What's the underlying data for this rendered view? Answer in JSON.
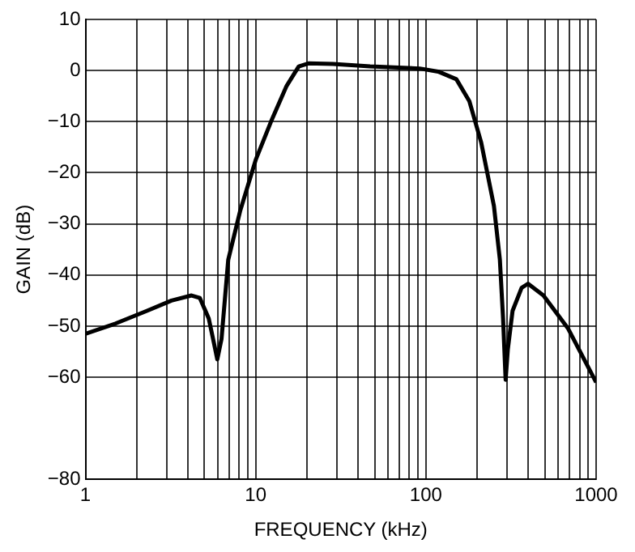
{
  "chart_data": {
    "type": "line",
    "xlabel": "FREQUENCY (kHz)",
    "ylabel": "GAIN (dB)",
    "log": "x",
    "grid": true,
    "legend": false,
    "marker": "none",
    "line_style": "solid",
    "xlim": [
      1,
      1000
    ],
    "ylim": [
      -80,
      10
    ],
    "xticks": [
      1,
      {
        "value": 2,
        "label": null
      },
      {
        "value": 3,
        "label": null
      },
      {
        "value": 4,
        "label": null
      },
      {
        "value": 5,
        "label": null
      },
      {
        "value": 6,
        "label": null
      },
      {
        "value": 7,
        "label": null
      },
      {
        "value": 8,
        "label": null
      },
      {
        "value": 9,
        "label": null
      },
      10,
      {
        "value": 20,
        "label": null
      },
      {
        "value": 30,
        "label": null
      },
      {
        "value": 40,
        "label": null
      },
      {
        "value": 50,
        "label": null
      },
      {
        "value": 60,
        "label": null
      },
      {
        "value": 70,
        "label": null
      },
      {
        "value": 80,
        "label": null
      },
      {
        "value": 90,
        "label": null
      },
      100,
      {
        "value": 200,
        "label": null
      },
      {
        "value": 300,
        "label": null
      },
      {
        "value": 400,
        "label": null
      },
      {
        "value": 500,
        "label": null
      },
      {
        "value": 600,
        "label": null
      },
      {
        "value": 700,
        "label": null
      },
      {
        "value": 800,
        "label": null
      },
      {
        "value": 900,
        "label": null
      },
      1000
    ],
    "yticks": [
      10,
      0,
      -10,
      -20,
      -30,
      -40,
      -50,
      -60,
      -80
    ],
    "x": [
      1,
      1.5,
      2.3,
      3.2,
      4.2,
      4.7,
      5.3,
      5.7,
      5.95,
      6.3,
      6.9,
      8.1,
      10,
      12.3,
      15.2,
      17.9,
      20.4,
      28.5,
      47,
      92,
      118,
      151,
      180,
      211,
      251,
      272,
      284,
      294,
      303,
      323,
      365,
      398,
      490,
      685,
      1000
    ],
    "series": [
      {
        "color": "#000000",
        "values": [
          -51.5,
          -49.5,
          -47,
          -45,
          -44,
          -44.5,
          -48.5,
          -53.5,
          -56.5,
          -52.5,
          -37,
          -27.5,
          -17.5,
          -10,
          -3,
          0.8,
          1.4,
          1.3,
          0.8,
          0.4,
          -0.2,
          -1.7,
          -6,
          -14,
          -26.5,
          -37,
          -48.5,
          -60.5,
          -54.5,
          -47,
          -42.5,
          -41.7,
          -44,
          -50.5,
          -61
        ]
      }
    ]
  }
}
